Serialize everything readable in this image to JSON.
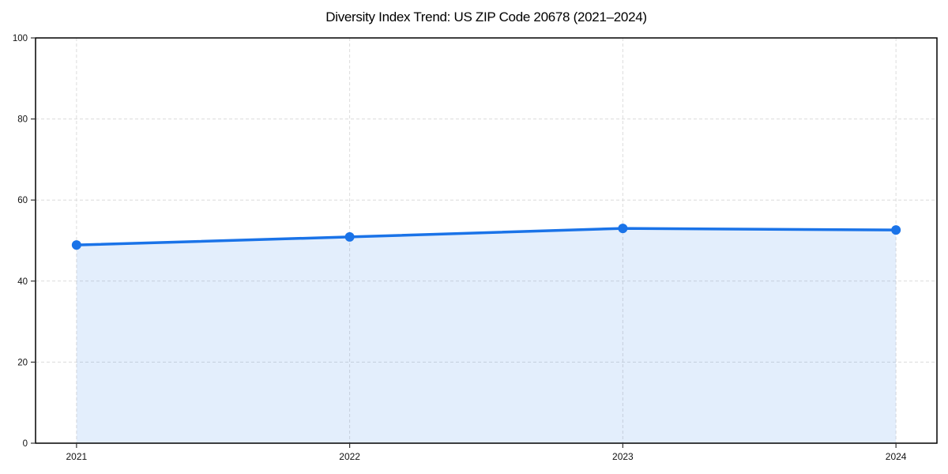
{
  "page": {
    "background": "#ffffff"
  },
  "chart_data": {
    "type": "area",
    "title": "Diversity Index Trend: US ZIP Code 20678 (2021–2024)",
    "x": [
      2021,
      2022,
      2023,
      2024
    ],
    "xtick_labels": [
      "2021",
      "2022",
      "2023",
      "2024"
    ],
    "series": [
      {
        "name": "Diversity Index",
        "values": [
          48.9,
          50.9,
          53.0,
          52.6
        ]
      }
    ],
    "ylim": [
      0,
      100
    ],
    "yticks": [
      0,
      20,
      40,
      60,
      80,
      100
    ],
    "xlabel": "",
    "ylabel": "",
    "x_margin_frac": 0.05,
    "grid": true,
    "grid_style": "dashed",
    "legend_position": "none",
    "marker": "circle",
    "colors": {
      "line": "#1a73e8",
      "marker": "#1a73e8",
      "fill": "rgba(26,115,232,0.12)",
      "grid": "#dcdcdc",
      "frame": "#000000",
      "tick": "#333333",
      "tick_label": "#111111",
      "title": "#000000",
      "background": "#ffffff"
    }
  }
}
